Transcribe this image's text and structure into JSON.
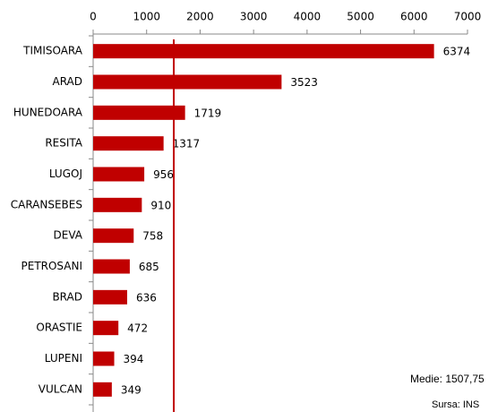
{
  "chart_data": {
    "type": "bar",
    "orientation": "horizontal",
    "categories": [
      "TIMISOARA",
      "ARAD",
      "HUNEDOARA",
      "RESITA",
      "LUGOJ",
      "CARANSEBES",
      "DEVA",
      "PETROSANI",
      "BRAD",
      "ORASTIE",
      "LUPENI",
      "VULCAN"
    ],
    "values": [
      6374,
      3523,
      1719,
      1317,
      956,
      910,
      758,
      685,
      636,
      472,
      394,
      349
    ],
    "color": "#c00000",
    "xlim": [
      0,
      7000
    ],
    "xticks": [
      0,
      1000,
      2000,
      3000,
      4000,
      5000,
      6000,
      7000
    ],
    "reference_line": {
      "value": 1507.75,
      "label": "Medie: 1507,75",
      "color": "#c00000"
    },
    "source": "Sursa: INS"
  }
}
